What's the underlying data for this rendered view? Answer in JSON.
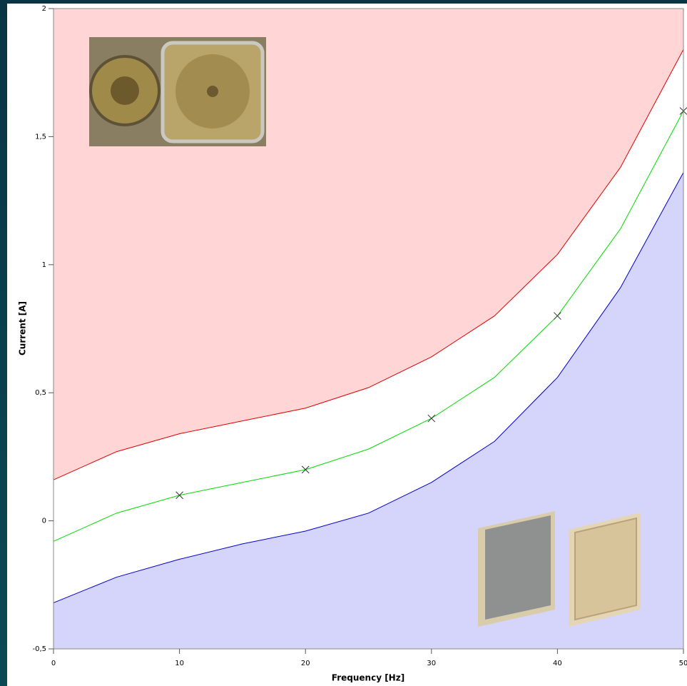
{
  "chart_data": {
    "type": "line",
    "xlabel": "Frequency [Hz]",
    "ylabel": "Current [A]",
    "xlim": [
      0,
      50
    ],
    "ylim": [
      -0.5,
      2
    ],
    "xticks": [
      0,
      10,
      20,
      30,
      40,
      50
    ],
    "yticks": [
      {
        "value": -0.5,
        "label": "-0,5"
      },
      0,
      {
        "value": 0.5,
        "label": "0,5"
      },
      1,
      {
        "value": 1.5,
        "label": "1,5"
      },
      2
    ],
    "series": [
      {
        "color": "#e00000",
        "fill": "above",
        "fill_color": "#ffd5d5",
        "x": [
          0,
          5,
          10,
          15,
          20,
          25,
          30,
          35,
          40,
          45,
          50
        ],
        "values": [
          0.16,
          0.27,
          0.34,
          0.39,
          0.44,
          0.52,
          0.64,
          0.8,
          1.04,
          1.38,
          1.84
        ]
      },
      {
        "color": "#0000d0",
        "fill": "below",
        "fill_color": "#d5d5fb",
        "x": [
          0,
          5,
          10,
          15,
          20,
          25,
          30,
          35,
          40,
          45,
          50
        ],
        "values": [
          -0.32,
          -0.22,
          -0.15,
          -0.09,
          -0.04,
          0.03,
          0.15,
          0.31,
          0.56,
          0.91,
          1.36
        ]
      },
      {
        "color": "#00dd00",
        "x": [
          0,
          5,
          10,
          15,
          20,
          25,
          30,
          35,
          40,
          45,
          50
        ],
        "values": [
          -0.08,
          0.03,
          0.1,
          0.15,
          0.2,
          0.28,
          0.4,
          0.56,
          0.8,
          1.14,
          1.6
        ]
      },
      {
        "color": "#333333",
        "marker": "x",
        "x": [
          10,
          20,
          30,
          40,
          50
        ],
        "values": [
          0.1,
          0.2,
          0.4,
          0.8,
          1.6
        ]
      }
    ]
  }
}
